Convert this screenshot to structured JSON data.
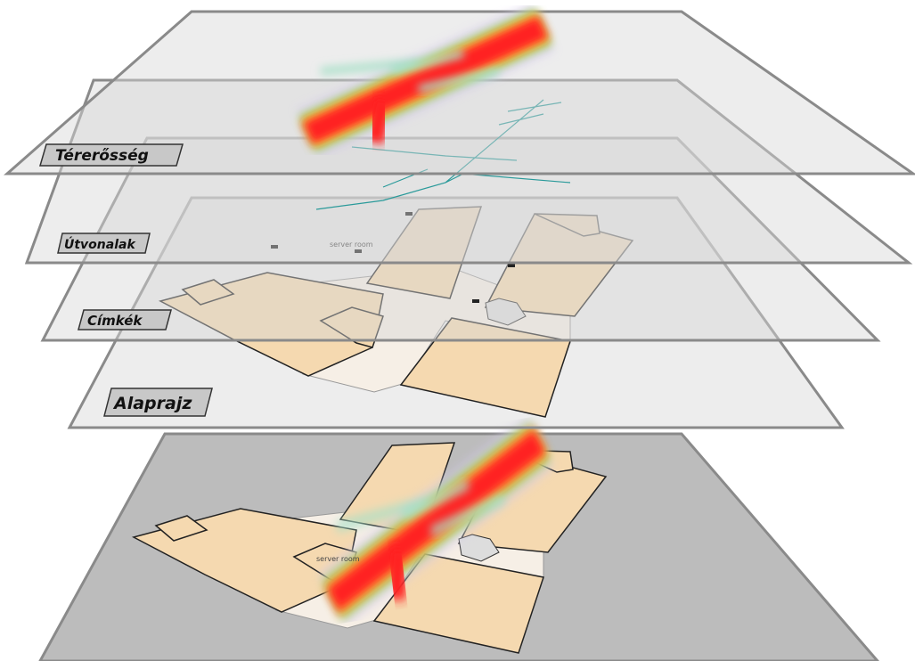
{
  "layers": [
    {
      "label": "Térerősség"
    },
    {
      "label": "Útvonalak"
    },
    {
      "label": "Címkék"
    },
    {
      "label": "Alaprajz"
    }
  ],
  "floor_labels": [
    "server room",
    "server room"
  ]
}
